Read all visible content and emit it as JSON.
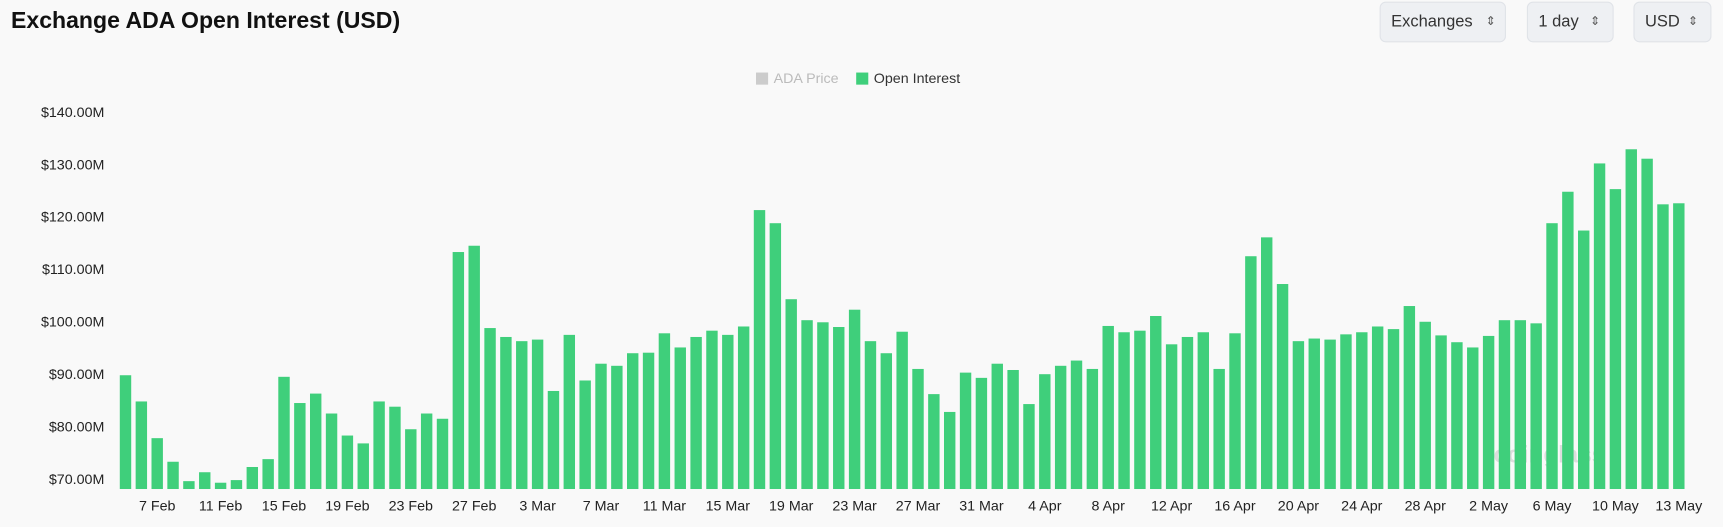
{
  "header": {
    "controls": [
      "Exchanges",
      "1 day",
      "USD"
    ]
  },
  "watermark": "coinglass",
  "chart_data": {
    "type": "bar",
    "title": "Exchange ADA Open Interest (USD)",
    "categories": [
      null,
      null,
      "7 Feb",
      null,
      null,
      null,
      "11 Feb",
      null,
      null,
      null,
      "15 Feb",
      null,
      null,
      null,
      "19 Feb",
      null,
      null,
      null,
      "23 Feb",
      null,
      null,
      null,
      "27 Feb",
      null,
      null,
      null,
      "3 Mar",
      null,
      null,
      null,
      "7 Mar",
      null,
      null,
      null,
      "11 Mar",
      null,
      null,
      null,
      "15 Mar",
      null,
      null,
      null,
      "19 Mar",
      null,
      null,
      null,
      "23 Mar",
      null,
      null,
      null,
      "27 Mar",
      null,
      null,
      null,
      "31 Mar",
      null,
      null,
      null,
      "4 Apr",
      null,
      null,
      null,
      "8 Apr",
      null,
      null,
      null,
      "12 Apr",
      null,
      null,
      null,
      "16 Apr",
      null,
      null,
      null,
      "20 Apr",
      null,
      null,
      null,
      "24 Apr",
      null,
      null,
      null,
      "28 Apr",
      null,
      null,
      null,
      "2 May",
      null,
      null,
      null,
      "6 May",
      null,
      null,
      null,
      "10 May",
      null,
      null,
      null,
      "13 May"
    ],
    "series": [
      {
        "name": "Open Interest",
        "color": "#3fcf7b",
        "values": [
          90,
          85,
          78,
          73.5,
          69.8,
          71.5,
          69.5,
          70,
          72.5,
          74,
          89.7,
          84.7,
          86.5,
          82.7,
          78.5,
          77,
          85,
          84,
          79.7,
          82.7,
          81.7,
          113.5,
          114.7,
          99,
          97.3,
          96.5,
          96.8,
          87,
          97.7,
          89,
          92.2,
          91.8,
          94.2,
          94.3,
          98,
          95.3,
          97.3,
          98.5,
          97.7,
          99.3,
          121.5,
          119,
          104.5,
          100.5,
          100.1,
          99.2,
          102.5,
          96.5,
          94.2,
          98.3,
          91.2,
          86.4,
          83,
          90.5,
          89.5,
          92.2,
          91,
          84.5,
          90.2,
          91.8,
          92.8,
          91.2,
          99.4,
          98.2,
          98.5,
          101.3,
          95.9,
          97.3,
          98.2,
          91.2,
          98,
          112.7,
          116.3,
          107.4,
          96.5,
          97,
          96.8,
          97.8,
          98.2,
          99.3,
          98.8,
          103.2,
          100.2,
          97.6,
          96.3,
          95.3,
          97.5,
          100.5,
          100.5,
          99.9,
          119,
          125,
          117.6,
          130.4,
          125.5,
          133.1,
          131.3,
          122.6,
          122.8
        ]
      }
    ],
    "hidden_series": [
      {
        "name": "ADA Price",
        "color": "#cccccc"
      }
    ],
    "ylim": [
      68.3,
      144.8
    ],
    "yticks": [
      {
        "value": 70,
        "label": "$70.00M"
      },
      {
        "value": 80,
        "label": "$80.00M"
      },
      {
        "value": 90,
        "label": "$90.00M"
      },
      {
        "value": 100,
        "label": "$100.00M"
      },
      {
        "value": 110,
        "label": "$110.00M"
      },
      {
        "value": 120,
        "label": "$120.00M"
      },
      {
        "value": 130,
        "label": "$130.00M"
      },
      {
        "value": 140,
        "label": "$140.00M"
      }
    ],
    "grid": false
  }
}
